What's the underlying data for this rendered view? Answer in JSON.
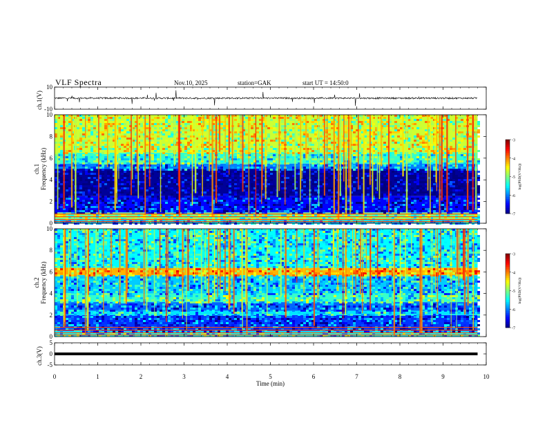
{
  "header": {
    "title": "VLF  Spectra",
    "date": "Nov.10, 2025",
    "station": "station=GAK",
    "start_ut": "start  UT  =   14:50:0"
  },
  "chart_data": [
    {
      "type": "line",
      "panel": "ch1-waveform",
      "ylabel": "ch.1(V)",
      "ylim": [
        -10,
        10
      ],
      "yticks": [
        "10",
        "-10"
      ],
      "x_range_min": [
        0,
        9.8
      ],
      "baseline_v": 0,
      "noise_amplitude_v": 1.5
    },
    {
      "type": "heatmap",
      "panel": "ch1-spectrogram",
      "ylabel": "ch.1 Frequency (kHz)",
      "ylim": [
        0,
        10
      ],
      "yticks": [
        "0",
        "2",
        "4",
        "6",
        "8",
        "10"
      ],
      "x_range_min": [
        0,
        9.8
      ],
      "colorbar": {
        "label": "log(PSD(V²/Hz))",
        "ticks": [
          "-3",
          "-4",
          "-5",
          "-6",
          "-7"
        ],
        "range": [
          -7,
          -3
        ]
      },
      "bands": [
        {
          "f": [
            0,
            0.3
          ],
          "level": -5.8
        },
        {
          "f": [
            0.3,
            1.0
          ],
          "level": -5.0
        },
        {
          "f": [
            1.0,
            2.5
          ],
          "level": -6.5
        },
        {
          "f": [
            2.5,
            5.0
          ],
          "level": -6.9
        },
        {
          "f": [
            5.0,
            5.5
          ],
          "level": -6.0
        },
        {
          "f": [
            5.5,
            6.5
          ],
          "level": -5.3
        },
        {
          "f": [
            6.5,
            10
          ],
          "level": -4.7
        }
      ]
    },
    {
      "type": "heatmap",
      "panel": "ch2-spectrogram",
      "ylabel": "ch.2 Frequency (kHz)",
      "ylim": [
        0,
        10
      ],
      "yticks": [
        "0",
        "2",
        "4",
        "6",
        "8",
        "10"
      ],
      "x_range_min": [
        0,
        9.8
      ],
      "colorbar": {
        "label": "log(PSD(V²/Hz))",
        "ticks": [
          "-3",
          "-4",
          "-5",
          "-6",
          "-7"
        ],
        "range": [
          -7,
          -3
        ]
      },
      "bands": [
        {
          "f": [
            0,
            0.5
          ],
          "level": -5.5
        },
        {
          "f": [
            0.5,
            2.0
          ],
          "level": -6.3
        },
        {
          "f": [
            2.0,
            2.4
          ],
          "level": -5.6
        },
        {
          "f": [
            2.4,
            3.2
          ],
          "level": -6.1
        },
        {
          "f": [
            3.2,
            4.0
          ],
          "level": -5.3
        },
        {
          "f": [
            4.0,
            5.7
          ],
          "level": -5.7
        },
        {
          "f": [
            5.7,
            6.4
          ],
          "level": -4.2
        },
        {
          "f": [
            6.4,
            10
          ],
          "level": -5.5
        }
      ]
    },
    {
      "type": "line",
      "panel": "ch3-waveform",
      "ylabel": "ch.3(V)",
      "ylim": [
        -5,
        5
      ],
      "yticks": [
        "5",
        "0",
        "-5"
      ],
      "x_range_min": [
        0,
        9.8
      ],
      "baseline_v": 0
    }
  ],
  "x_axis": {
    "label": "Time  (min)",
    "ticks": [
      "0",
      "1",
      "2",
      "3",
      "4",
      "5",
      "6",
      "7",
      "8",
      "9",
      "10"
    ],
    "range": [
      0,
      10
    ]
  }
}
